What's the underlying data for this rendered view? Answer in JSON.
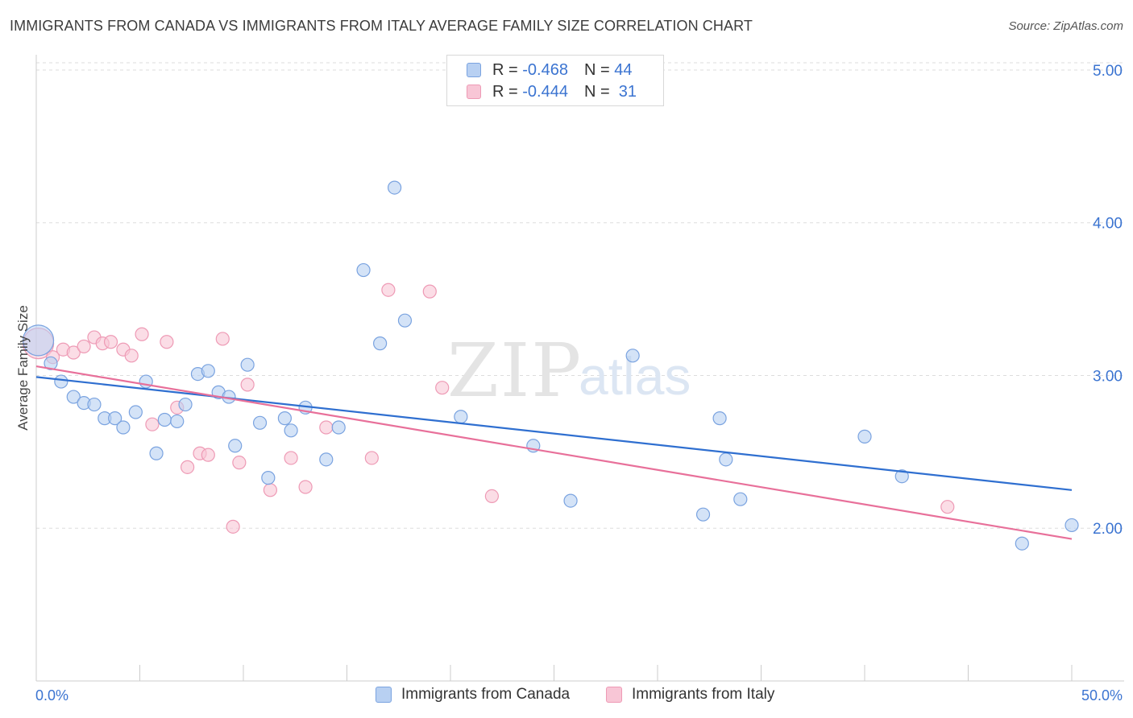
{
  "title": "IMMIGRANTS FROM CANADA VS IMMIGRANTS FROM ITALY AVERAGE FAMILY SIZE CORRELATION CHART",
  "source": "Source: ZipAtlas.com",
  "watermark": {
    "zip": "ZIP",
    "atlas": "atlas"
  },
  "legend": {
    "rows": [
      {
        "r_label": "R =",
        "r_value": "-0.468",
        "n_label": "N =",
        "n_value": "44"
      },
      {
        "r_label": "R =",
        "r_value": "-0.444",
        "n_label": "N =",
        "n_value": "31"
      }
    ]
  },
  "bottom_legend": [
    "Immigrants from Canada",
    "Immigrants from Italy"
  ],
  "colors": {
    "canada_fill": "#b8d0f2",
    "canada_stroke": "#7aa3e0",
    "canada_line": "#2f6fd0",
    "italy_fill": "#f8c6d6",
    "italy_stroke": "#ee9ab5",
    "italy_line": "#e8709a",
    "axis_label": "#3b74d1",
    "grid": "#dddddd"
  },
  "chart_data": {
    "type": "scatter",
    "title": "IMMIGRANTS FROM CANADA VS IMMIGRANTS FROM ITALY AVERAGE FAMILY SIZE CORRELATION CHART",
    "xlabel": "",
    "ylabel": "Average Family Size",
    "xlim": [
      0,
      50
    ],
    "ylim": [
      1.0,
      5.1
    ],
    "x_tick_labels": [
      "0.0%",
      "50.0%"
    ],
    "y_ticks": [
      2.0,
      3.0,
      4.0,
      5.0
    ],
    "y_tick_labels": [
      "2.00",
      "3.00",
      "4.00",
      "5.00"
    ],
    "grid": true,
    "legend_position": "top-center",
    "series": [
      {
        "name": "Immigrants from Canada",
        "points": [
          [
            0.1,
            3.23
          ],
          [
            0.7,
            3.08
          ],
          [
            1.2,
            2.96
          ],
          [
            1.8,
            2.86
          ],
          [
            2.3,
            2.82
          ],
          [
            2.8,
            2.81
          ],
          [
            3.3,
            2.72
          ],
          [
            3.8,
            2.72
          ],
          [
            4.2,
            2.66
          ],
          [
            4.8,
            2.76
          ],
          [
            5.3,
            2.96
          ],
          [
            5.8,
            2.49
          ],
          [
            6.2,
            2.71
          ],
          [
            6.8,
            2.7
          ],
          [
            7.2,
            2.81
          ],
          [
            7.8,
            3.01
          ],
          [
            8.3,
            3.03
          ],
          [
            8.8,
            2.89
          ],
          [
            9.3,
            2.86
          ],
          [
            9.6,
            2.54
          ],
          [
            10.2,
            3.07
          ],
          [
            10.8,
            2.69
          ],
          [
            11.2,
            2.33
          ],
          [
            12.0,
            2.72
          ],
          [
            12.3,
            2.64
          ],
          [
            13.0,
            2.79
          ],
          [
            14.0,
            2.45
          ],
          [
            14.6,
            2.66
          ],
          [
            15.8,
            3.69
          ],
          [
            16.6,
            3.21
          ],
          [
            17.3,
            4.23
          ],
          [
            17.8,
            3.36
          ],
          [
            20.5,
            2.73
          ],
          [
            24.0,
            2.54
          ],
          [
            25.8,
            2.18
          ],
          [
            28.8,
            3.13
          ],
          [
            32.2,
            2.09
          ],
          [
            33.0,
            2.72
          ],
          [
            33.3,
            2.45
          ],
          [
            34.0,
            2.19
          ],
          [
            40.0,
            2.6
          ],
          [
            41.8,
            2.34
          ],
          [
            47.6,
            1.9
          ],
          [
            50.0,
            2.02
          ]
        ]
      },
      {
        "name": "Immigrants from Italy",
        "points": [
          [
            0.1,
            3.21
          ],
          [
            0.8,
            3.12
          ],
          [
            1.3,
            3.17
          ],
          [
            1.8,
            3.15
          ],
          [
            2.3,
            3.19
          ],
          [
            2.8,
            3.25
          ],
          [
            3.2,
            3.21
          ],
          [
            3.6,
            3.22
          ],
          [
            4.2,
            3.17
          ],
          [
            4.6,
            3.13
          ],
          [
            5.1,
            3.27
          ],
          [
            5.6,
            2.68
          ],
          [
            6.3,
            3.22
          ],
          [
            6.8,
            2.79
          ],
          [
            7.3,
            2.4
          ],
          [
            7.9,
            2.49
          ],
          [
            8.3,
            2.48
          ],
          [
            9.0,
            3.24
          ],
          [
            9.5,
            2.01
          ],
          [
            9.8,
            2.43
          ],
          [
            10.2,
            2.94
          ],
          [
            11.3,
            2.25
          ],
          [
            12.3,
            2.46
          ],
          [
            13.0,
            2.27
          ],
          [
            14.0,
            2.66
          ],
          [
            16.2,
            2.46
          ],
          [
            17.0,
            3.56
          ],
          [
            19.0,
            3.55
          ],
          [
            19.6,
            2.92
          ],
          [
            22.0,
            2.21
          ],
          [
            44.0,
            2.14
          ]
        ]
      }
    ],
    "trend_lines": [
      {
        "series": "Immigrants from Canada",
        "x": [
          0,
          50
        ],
        "y": [
          2.99,
          2.25
        ]
      },
      {
        "series": "Immigrants from Italy",
        "x": [
          0,
          50
        ],
        "y": [
          3.06,
          1.93
        ]
      }
    ]
  }
}
